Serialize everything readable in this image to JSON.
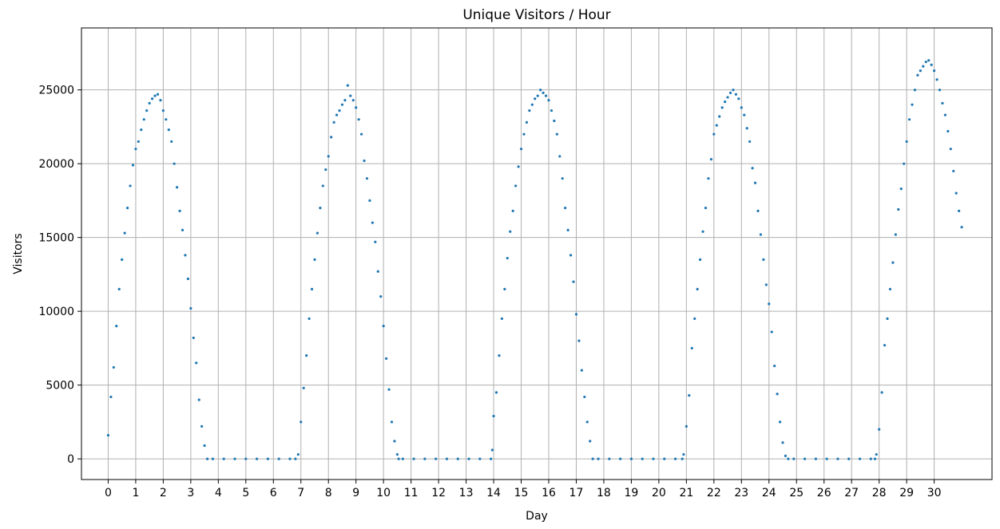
{
  "chart_data": {
    "type": "scatter",
    "title": "Unique Visitors / Hour",
    "xlabel": "Day",
    "ylabel": "Visitors",
    "xlim": [
      -0.97,
      32.1
    ],
    "ylim": [
      -1400,
      29200
    ],
    "x_ticks": [
      0,
      1,
      2,
      3,
      4,
      5,
      6,
      7,
      8,
      9,
      10,
      11,
      12,
      13,
      14,
      15,
      16,
      17,
      18,
      19,
      20,
      21,
      22,
      23,
      24,
      25,
      26,
      27,
      28,
      29,
      30
    ],
    "y_ticks": [
      0,
      5000,
      10000,
      15000,
      20000,
      25000
    ],
    "grid": true,
    "marker_color": "#1f77b4",
    "sample_interval_days": 0.0416667,
    "cycles": [
      {
        "start": 0.0,
        "peak_day": 1.8,
        "end": 3.6,
        "peak": 24600
      },
      {
        "start": 6.9,
        "peak_day": 8.7,
        "end": 10.55,
        "peak": 25100
      },
      {
        "start": 13.95,
        "peak_day": 15.8,
        "end": 17.6,
        "peak": 25000
      },
      {
        "start": 20.9,
        "peak_day": 22.75,
        "end": 24.7,
        "peak": 25000
      },
      {
        "start": 27.9,
        "peak_day": 29.8,
        "end": 31.0,
        "peak": 27000
      }
    ],
    "series": [
      {
        "points": [
          [
            0.0,
            1600
          ],
          [
            0.1,
            4200
          ],
          [
            0.2,
            6200
          ],
          [
            0.3,
            9000
          ],
          [
            0.4,
            11500
          ],
          [
            0.5,
            13500
          ],
          [
            0.6,
            15300
          ],
          [
            0.7,
            17000
          ],
          [
            0.8,
            18500
          ],
          [
            0.9,
            19900
          ],
          [
            1.0,
            21000
          ],
          [
            1.1,
            21500
          ],
          [
            1.2,
            22300
          ],
          [
            1.3,
            23000
          ],
          [
            1.4,
            23600
          ],
          [
            1.5,
            24100
          ],
          [
            1.6,
            24400
          ],
          [
            1.7,
            24600
          ],
          [
            1.8,
            24700
          ],
          [
            1.9,
            24300
          ],
          [
            2.0,
            23600
          ],
          [
            2.1,
            23000
          ],
          [
            2.2,
            22300
          ],
          [
            2.3,
            21500
          ],
          [
            2.4,
            20000
          ],
          [
            2.5,
            18400
          ],
          [
            2.6,
            16800
          ],
          [
            2.7,
            15500
          ],
          [
            2.8,
            13800
          ],
          [
            2.9,
            12200
          ],
          [
            3.0,
            10200
          ],
          [
            3.1,
            8200
          ],
          [
            3.2,
            6500
          ],
          [
            3.3,
            4000
          ],
          [
            3.4,
            2200
          ],
          [
            3.5,
            900
          ],
          [
            3.6,
            0
          ],
          [
            3.8,
            0
          ],
          [
            4.2,
            0
          ],
          [
            4.6,
            0
          ],
          [
            5.0,
            0
          ],
          [
            5.4,
            0
          ],
          [
            5.8,
            0
          ],
          [
            6.2,
            0
          ],
          [
            6.6,
            0
          ],
          [
            6.8,
            0
          ],
          [
            6.9,
            300
          ],
          [
            7.0,
            2500
          ],
          [
            7.1,
            4800
          ],
          [
            7.2,
            7000
          ],
          [
            7.3,
            9500
          ],
          [
            7.4,
            11500
          ],
          [
            7.5,
            13500
          ],
          [
            7.6,
            15300
          ],
          [
            7.7,
            17000
          ],
          [
            7.8,
            18500
          ],
          [
            7.9,
            19600
          ],
          [
            8.0,
            20500
          ],
          [
            8.1,
            21800
          ],
          [
            8.2,
            22800
          ],
          [
            8.3,
            23300
          ],
          [
            8.4,
            23600
          ],
          [
            8.5,
            24000
          ],
          [
            8.6,
            24300
          ],
          [
            8.7,
            25300
          ],
          [
            8.8,
            24600
          ],
          [
            8.9,
            24300
          ],
          [
            9.0,
            23800
          ],
          [
            9.1,
            23000
          ],
          [
            9.2,
            22000
          ],
          [
            9.3,
            20200
          ],
          [
            9.4,
            19000
          ],
          [
            9.5,
            17500
          ],
          [
            9.6,
            16000
          ],
          [
            9.7,
            14700
          ],
          [
            9.8,
            12700
          ],
          [
            9.9,
            11000
          ],
          [
            10.0,
            9000
          ],
          [
            10.1,
            6800
          ],
          [
            10.2,
            4700
          ],
          [
            10.3,
            2500
          ],
          [
            10.4,
            1200
          ],
          [
            10.5,
            300
          ],
          [
            10.55,
            0
          ],
          [
            10.7,
            0
          ],
          [
            11.1,
            0
          ],
          [
            11.5,
            0
          ],
          [
            11.9,
            0
          ],
          [
            12.3,
            0
          ],
          [
            12.7,
            0
          ],
          [
            13.1,
            0
          ],
          [
            13.5,
            0
          ],
          [
            13.9,
            0
          ],
          [
            13.95,
            600
          ],
          [
            14.0,
            2900
          ],
          [
            14.1,
            4500
          ],
          [
            14.2,
            7000
          ],
          [
            14.3,
            9500
          ],
          [
            14.4,
            11500
          ],
          [
            14.5,
            13600
          ],
          [
            14.6,
            15400
          ],
          [
            14.7,
            16800
          ],
          [
            14.8,
            18500
          ],
          [
            14.9,
            19800
          ],
          [
            15.0,
            21000
          ],
          [
            15.1,
            22000
          ],
          [
            15.2,
            22800
          ],
          [
            15.3,
            23600
          ],
          [
            15.4,
            24000
          ],
          [
            15.5,
            24400
          ],
          [
            15.6,
            24600
          ],
          [
            15.7,
            25000
          ],
          [
            15.8,
            24800
          ],
          [
            15.9,
            24600
          ],
          [
            16.0,
            24300
          ],
          [
            16.1,
            23600
          ],
          [
            16.2,
            22900
          ],
          [
            16.3,
            22000
          ],
          [
            16.4,
            20500
          ],
          [
            16.5,
            19000
          ],
          [
            16.6,
            17000
          ],
          [
            16.7,
            15500
          ],
          [
            16.8,
            13800
          ],
          [
            16.9,
            12000
          ],
          [
            17.0,
            9800
          ],
          [
            17.1,
            8000
          ],
          [
            17.2,
            6000
          ],
          [
            17.3,
            4200
          ],
          [
            17.4,
            2500
          ],
          [
            17.5,
            1200
          ],
          [
            17.6,
            0
          ],
          [
            17.8,
            0
          ],
          [
            18.2,
            0
          ],
          [
            18.6,
            0
          ],
          [
            19.0,
            0
          ],
          [
            19.4,
            0
          ],
          [
            19.8,
            0
          ],
          [
            20.2,
            0
          ],
          [
            20.6,
            0
          ],
          [
            20.85,
            0
          ],
          [
            20.9,
            300
          ],
          [
            21.0,
            2200
          ],
          [
            21.1,
            4300
          ],
          [
            21.2,
            7500
          ],
          [
            21.3,
            9500
          ],
          [
            21.4,
            11500
          ],
          [
            21.5,
            13500
          ],
          [
            21.6,
            15400
          ],
          [
            21.7,
            17000
          ],
          [
            21.8,
            19000
          ],
          [
            21.9,
            20300
          ],
          [
            22.0,
            22000
          ],
          [
            22.1,
            22600
          ],
          [
            22.2,
            23200
          ],
          [
            22.3,
            23800
          ],
          [
            22.4,
            24200
          ],
          [
            22.5,
            24500
          ],
          [
            22.6,
            24800
          ],
          [
            22.7,
            25000
          ],
          [
            22.8,
            24700
          ],
          [
            22.9,
            24400
          ],
          [
            23.0,
            23800
          ],
          [
            23.1,
            23300
          ],
          [
            23.2,
            22400
          ],
          [
            23.3,
            21500
          ],
          [
            23.4,
            19700
          ],
          [
            23.5,
            18700
          ],
          [
            23.6,
            16800
          ],
          [
            23.7,
            15200
          ],
          [
            23.8,
            13500
          ],
          [
            23.9,
            11800
          ],
          [
            24.0,
            10500
          ],
          [
            24.1,
            8600
          ],
          [
            24.2,
            6300
          ],
          [
            24.3,
            4400
          ],
          [
            24.4,
            2500
          ],
          [
            24.5,
            1100
          ],
          [
            24.6,
            200
          ],
          [
            24.7,
            0
          ],
          [
            24.9,
            0
          ],
          [
            25.3,
            0
          ],
          [
            25.7,
            0
          ],
          [
            26.1,
            0
          ],
          [
            26.5,
            0
          ],
          [
            26.9,
            0
          ],
          [
            27.3,
            0
          ],
          [
            27.7,
            0
          ],
          [
            27.85,
            0
          ],
          [
            27.9,
            300
          ],
          [
            28.0,
            2000
          ],
          [
            28.1,
            4500
          ],
          [
            28.2,
            7700
          ],
          [
            28.3,
            9500
          ],
          [
            28.4,
            11500
          ],
          [
            28.5,
            13300
          ],
          [
            28.6,
            15200
          ],
          [
            28.7,
            16900
          ],
          [
            28.8,
            18300
          ],
          [
            28.9,
            20000
          ],
          [
            29.0,
            21500
          ],
          [
            29.1,
            23000
          ],
          [
            29.2,
            24000
          ],
          [
            29.3,
            25000
          ],
          [
            29.4,
            26000
          ],
          [
            29.5,
            26300
          ],
          [
            29.6,
            26600
          ],
          [
            29.7,
            26900
          ],
          [
            29.8,
            27000
          ],
          [
            29.9,
            26700
          ],
          [
            30.0,
            26300
          ],
          [
            30.1,
            25700
          ],
          [
            30.2,
            25000
          ],
          [
            30.3,
            24100
          ],
          [
            30.4,
            23300
          ],
          [
            30.5,
            22200
          ],
          [
            30.6,
            21000
          ],
          [
            30.7,
            19500
          ],
          [
            30.8,
            18000
          ],
          [
            30.9,
            16800
          ],
          [
            31.0,
            15700
          ]
        ]
      }
    ]
  }
}
